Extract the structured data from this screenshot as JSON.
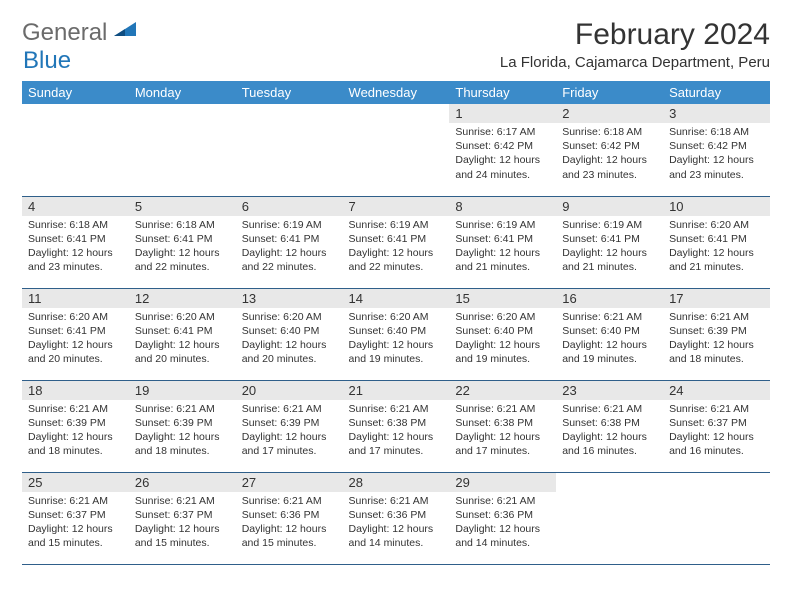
{
  "header": {
    "logo_part1": "General",
    "logo_part2": "Blue",
    "month_title": "February 2024",
    "location": "La Florida, Cajamarca Department, Peru"
  },
  "colors": {
    "header_bg": "#3b8bc9",
    "header_text": "#ffffff",
    "daynum_bg": "#e8e8e8",
    "row_border": "#2f5f8a",
    "logo_gray": "#6b6b6b",
    "logo_blue": "#2176b8"
  },
  "weekdays": [
    "Sunday",
    "Monday",
    "Tuesday",
    "Wednesday",
    "Thursday",
    "Friday",
    "Saturday"
  ],
  "weeks": [
    [
      null,
      null,
      null,
      null,
      {
        "d": "1",
        "sr": "6:17 AM",
        "ss": "6:42 PM",
        "dl": "12 hours and 24 minutes."
      },
      {
        "d": "2",
        "sr": "6:18 AM",
        "ss": "6:42 PM",
        "dl": "12 hours and 23 minutes."
      },
      {
        "d": "3",
        "sr": "6:18 AM",
        "ss": "6:42 PM",
        "dl": "12 hours and 23 minutes."
      }
    ],
    [
      {
        "d": "4",
        "sr": "6:18 AM",
        "ss": "6:41 PM",
        "dl": "12 hours and 23 minutes."
      },
      {
        "d": "5",
        "sr": "6:18 AM",
        "ss": "6:41 PM",
        "dl": "12 hours and 22 minutes."
      },
      {
        "d": "6",
        "sr": "6:19 AM",
        "ss": "6:41 PM",
        "dl": "12 hours and 22 minutes."
      },
      {
        "d": "7",
        "sr": "6:19 AM",
        "ss": "6:41 PM",
        "dl": "12 hours and 22 minutes."
      },
      {
        "d": "8",
        "sr": "6:19 AM",
        "ss": "6:41 PM",
        "dl": "12 hours and 21 minutes."
      },
      {
        "d": "9",
        "sr": "6:19 AM",
        "ss": "6:41 PM",
        "dl": "12 hours and 21 minutes."
      },
      {
        "d": "10",
        "sr": "6:20 AM",
        "ss": "6:41 PM",
        "dl": "12 hours and 21 minutes."
      }
    ],
    [
      {
        "d": "11",
        "sr": "6:20 AM",
        "ss": "6:41 PM",
        "dl": "12 hours and 20 minutes."
      },
      {
        "d": "12",
        "sr": "6:20 AM",
        "ss": "6:41 PM",
        "dl": "12 hours and 20 minutes."
      },
      {
        "d": "13",
        "sr": "6:20 AM",
        "ss": "6:40 PM",
        "dl": "12 hours and 20 minutes."
      },
      {
        "d": "14",
        "sr": "6:20 AM",
        "ss": "6:40 PM",
        "dl": "12 hours and 19 minutes."
      },
      {
        "d": "15",
        "sr": "6:20 AM",
        "ss": "6:40 PM",
        "dl": "12 hours and 19 minutes."
      },
      {
        "d": "16",
        "sr": "6:21 AM",
        "ss": "6:40 PM",
        "dl": "12 hours and 19 minutes."
      },
      {
        "d": "17",
        "sr": "6:21 AM",
        "ss": "6:39 PM",
        "dl": "12 hours and 18 minutes."
      }
    ],
    [
      {
        "d": "18",
        "sr": "6:21 AM",
        "ss": "6:39 PM",
        "dl": "12 hours and 18 minutes."
      },
      {
        "d": "19",
        "sr": "6:21 AM",
        "ss": "6:39 PM",
        "dl": "12 hours and 18 minutes."
      },
      {
        "d": "20",
        "sr": "6:21 AM",
        "ss": "6:39 PM",
        "dl": "12 hours and 17 minutes."
      },
      {
        "d": "21",
        "sr": "6:21 AM",
        "ss": "6:38 PM",
        "dl": "12 hours and 17 minutes."
      },
      {
        "d": "22",
        "sr": "6:21 AM",
        "ss": "6:38 PM",
        "dl": "12 hours and 17 minutes."
      },
      {
        "d": "23",
        "sr": "6:21 AM",
        "ss": "6:38 PM",
        "dl": "12 hours and 16 minutes."
      },
      {
        "d": "24",
        "sr": "6:21 AM",
        "ss": "6:37 PM",
        "dl": "12 hours and 16 minutes."
      }
    ],
    [
      {
        "d": "25",
        "sr": "6:21 AM",
        "ss": "6:37 PM",
        "dl": "12 hours and 15 minutes."
      },
      {
        "d": "26",
        "sr": "6:21 AM",
        "ss": "6:37 PM",
        "dl": "12 hours and 15 minutes."
      },
      {
        "d": "27",
        "sr": "6:21 AM",
        "ss": "6:36 PM",
        "dl": "12 hours and 15 minutes."
      },
      {
        "d": "28",
        "sr": "6:21 AM",
        "ss": "6:36 PM",
        "dl": "12 hours and 14 minutes."
      },
      {
        "d": "29",
        "sr": "6:21 AM",
        "ss": "6:36 PM",
        "dl": "12 hours and 14 minutes."
      },
      null,
      null
    ]
  ],
  "labels": {
    "sunrise": "Sunrise: ",
    "sunset": "Sunset: ",
    "daylight": "Daylight: "
  }
}
